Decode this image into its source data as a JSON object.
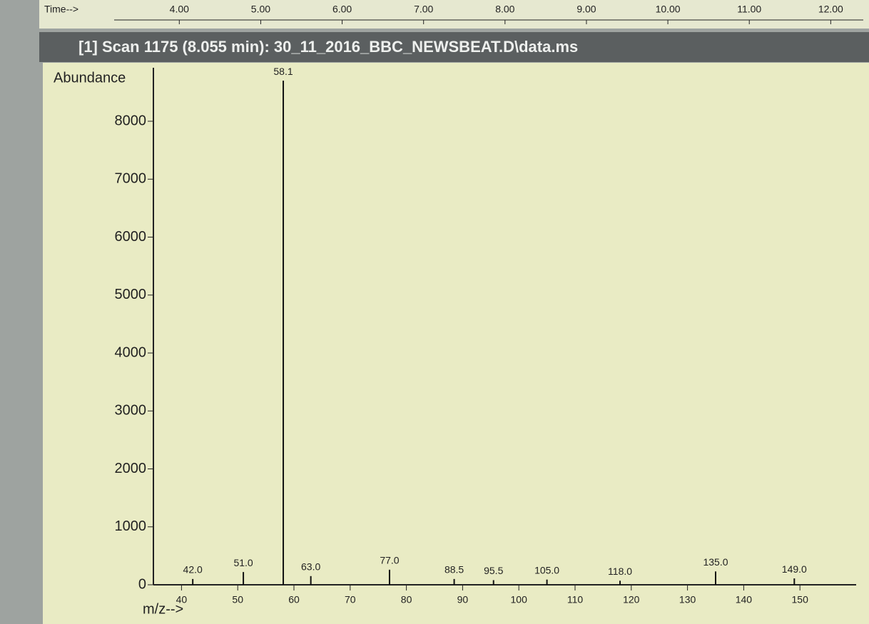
{
  "chart_data": [
    {
      "type": "axis",
      "xlabel": "Time-->",
      "xlim": [
        3.2,
        12.4
      ],
      "xticks": [
        {
          "value": 4,
          "label": "4.00"
        },
        {
          "value": 5,
          "label": "5.00"
        },
        {
          "value": 6,
          "label": "6.00"
        },
        {
          "value": 7,
          "label": "7.00"
        },
        {
          "value": 8,
          "label": "8.00"
        },
        {
          "value": 9,
          "label": "9.00"
        },
        {
          "value": 10,
          "label": "10.00"
        },
        {
          "value": 11,
          "label": "11.00"
        },
        {
          "value": 12,
          "label": "12.00"
        }
      ]
    },
    {
      "type": "spectrum",
      "title": "[1] Scan 1175 (8.055 min): 30_11_2016_BBC_NEWSBEAT.D\\data.ms",
      "ylabel": "Abundance",
      "xlabel": "m/z-->",
      "x": [
        42.0,
        51.0,
        58.1,
        63.0,
        77.0,
        88.5,
        95.5,
        105.0,
        118.0,
        135.0,
        149.0
      ],
      "x_labels": [
        "42.0",
        "51.0",
        "58.1",
        "63.0",
        "77.0",
        "88.5",
        "95.5",
        "105.0",
        "118.0",
        "135.0",
        "149.0"
      ],
      "values": [
        100,
        220,
        8700,
        150,
        260,
        100,
        80,
        90,
        70,
        230,
        110
      ],
      "color": "#111111",
      "xlim": [
        35,
        160
      ],
      "xticks": [
        40,
        50,
        60,
        70,
        80,
        90,
        100,
        110,
        120,
        130,
        140,
        150
      ],
      "ylim": [
        0,
        8800
      ],
      "yticks": [
        0,
        1000,
        2000,
        3000,
        4000,
        5000,
        6000,
        7000,
        8000
      ]
    }
  ]
}
